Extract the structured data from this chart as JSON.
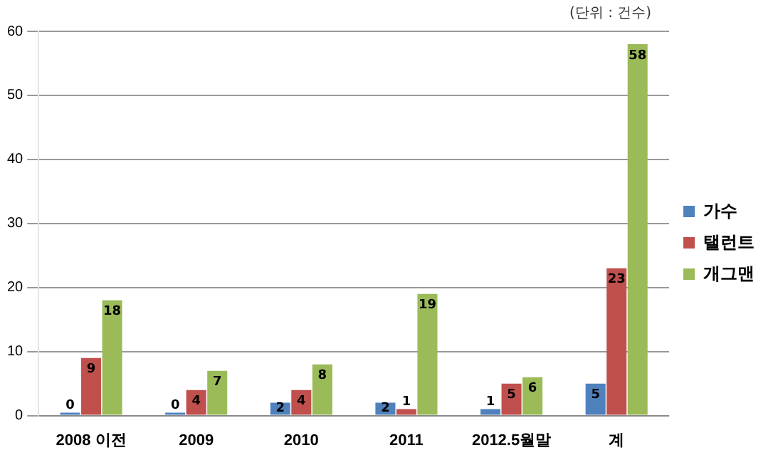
{
  "chart_data": {
    "type": "bar",
    "categories": [
      "2008 이전",
      "2009",
      "2010",
      "2011",
      "2012.5월말",
      "계"
    ],
    "series": [
      {
        "name": "가수",
        "color": "#4f81bd",
        "values": [
          0,
          0,
          2,
          2,
          1,
          5
        ]
      },
      {
        "name": "탤런트",
        "color": "#c0504d",
        "values": [
          9,
          4,
          4,
          1,
          5,
          23
        ]
      },
      {
        "name": "개그맨",
        "color": "#9bbb59",
        "values": [
          18,
          7,
          8,
          19,
          6,
          58
        ]
      }
    ],
    "ylim": [
      0,
      60
    ],
    "yticks": [
      0,
      10,
      20,
      30,
      40,
      50,
      60
    ],
    "grid": "y",
    "legend": "right",
    "data_labels": true,
    "annotations": [
      "(단위 : 건수)"
    ]
  }
}
